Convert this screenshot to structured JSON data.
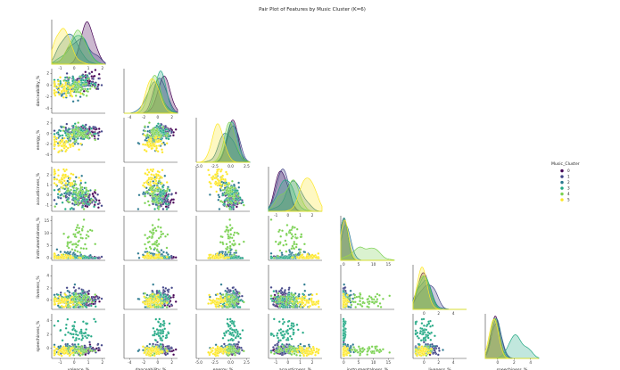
{
  "chart_data": {
    "type": "pairplot",
    "title": "Pair Plot of Features by Music Cluster (K=6)",
    "variables": [
      {
        "name": "valence_%",
        "ticks": [
          "-1",
          "0",
          "1",
          "2"
        ],
        "range": [
          -1.6,
          2.2
        ]
      },
      {
        "name": "danceability_%",
        "ticks": [
          "-4",
          "-2",
          "0",
          "2"
        ],
        "range": [
          -4.8,
          2.8
        ]
      },
      {
        "name": "energy_%",
        "ticks": [
          "-5.0",
          "-2.5",
          "0.0",
          "2.5"
        ],
        "range": [
          -5.4,
          3.0
        ]
      },
      {
        "name": "acousticness_%",
        "ticks": [
          "-1",
          "0",
          "1",
          "2"
        ],
        "range": [
          -1.6,
          2.8
        ]
      },
      {
        "name": "instrumentalness_%",
        "ticks": [
          "0",
          "5",
          "10",
          "15"
        ],
        "range": [
          -1.0,
          17.0
        ]
      },
      {
        "name": "liveness_%",
        "ticks": [
          "0",
          "2",
          "4"
        ],
        "range": [
          -1.5,
          5.8
        ]
      },
      {
        "name": "speechiness_%",
        "ticks": [
          "0",
          "2",
          "4"
        ],
        "range": [
          -1.5,
          5.0
        ]
      }
    ],
    "y_ticks": {
      "danceability_%": [
        "2",
        "0",
        "-2",
        "-4"
      ],
      "energy_%": [
        "2",
        "0",
        "-2",
        "-4"
      ],
      "acousticness_%": [
        "2",
        "1",
        "0",
        "-1"
      ],
      "instrumentalness_%": [
        "15",
        "10",
        "5",
        "0"
      ],
      "liveness_%": [
        "4",
        "2",
        "0"
      ],
      "speechiness_%": [
        "4",
        "2",
        "0"
      ]
    },
    "diagonal": "kde",
    "corner": true,
    "legend": {
      "title": "Music_Cluster",
      "position": "right",
      "entries": [
        "0",
        "1",
        "2",
        "3",
        "4",
        "5"
      ],
      "colors": [
        "#440154",
        "#414487",
        "#2a788e",
        "#22a884",
        "#7ad151",
        "#fde725"
      ]
    },
    "clusters": [
      {
        "name": "0",
        "mean": [
          1.0,
          0.9,
          0.3,
          -0.5,
          0.0,
          0.0,
          -0.3
        ],
        "sd": [
          0.5,
          0.6,
          0.6,
          0.35,
          0.3,
          0.5,
          0.3
        ]
      },
      {
        "name": "1",
        "mean": [
          0.3,
          0.3,
          0.4,
          -0.4,
          0.0,
          0.4,
          -0.2
        ],
        "sd": [
          0.7,
          0.7,
          0.7,
          0.4,
          0.3,
          1.0,
          0.4
        ]
      },
      {
        "name": "2",
        "mean": [
          -0.4,
          -0.4,
          -0.6,
          0.4,
          0.5,
          0.2,
          -0.1
        ],
        "sd": [
          0.6,
          0.9,
          1.0,
          0.6,
          1.0,
          0.8,
          0.4
        ]
      },
      {
        "name": "3",
        "mean": [
          0.0,
          0.4,
          0.2,
          -0.2,
          0.0,
          -0.1,
          2.2
        ],
        "sd": [
          0.7,
          0.6,
          0.6,
          0.5,
          0.3,
          0.6,
          1.0
        ]
      },
      {
        "name": "4",
        "mean": [
          0.2,
          -0.3,
          -0.2,
          0.3,
          7.0,
          0.1,
          -0.3
        ],
        "sd": [
          0.6,
          0.8,
          0.8,
          0.6,
          4.0,
          0.7,
          0.3
        ]
      },
      {
        "name": "5",
        "mean": [
          -0.9,
          -0.8,
          -1.8,
          1.7,
          0.1,
          -0.2,
          -0.4
        ],
        "sd": [
          0.5,
          0.8,
          0.7,
          0.5,
          0.6,
          0.5,
          0.3
        ]
      }
    ]
  }
}
